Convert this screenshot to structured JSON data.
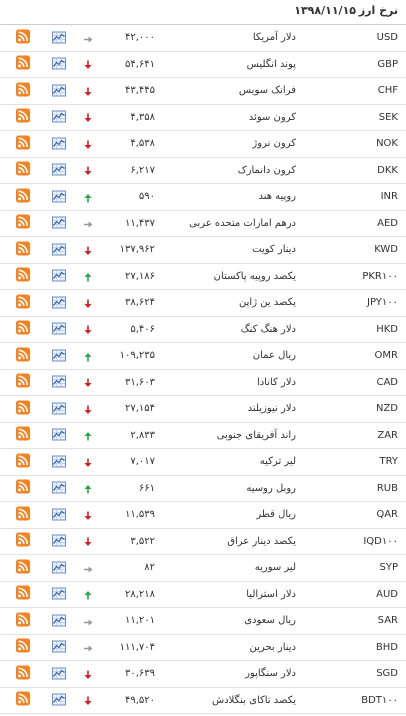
{
  "header": {
    "title": "نرخ ارز",
    "date": "۱۳۹۸/۱۱/۱۵"
  },
  "table": {
    "rows": [
      {
        "code": "USD",
        "name": "دلار آمریکا",
        "value": "۴۲,۰۰۰",
        "trend": "same"
      },
      {
        "code": "GBP",
        "name": "پوند انگلیس",
        "value": "۵۴,۶۴۱",
        "trend": "down"
      },
      {
        "code": "CHF",
        "name": "فرانک سویس",
        "value": "۴۳,۴۴۵",
        "trend": "down"
      },
      {
        "code": "SEK",
        "name": "کرون سوئد",
        "value": "۴,۳۵۸",
        "trend": "down"
      },
      {
        "code": "NOK",
        "name": "کرون نروژ",
        "value": "۴,۵۳۸",
        "trend": "down"
      },
      {
        "code": "DKK",
        "name": "کرون دانمارک",
        "value": "۶,۲۱۷",
        "trend": "down"
      },
      {
        "code": "INR",
        "name": "روپیه هند",
        "value": "۵۹۰",
        "trend": "up"
      },
      {
        "code": "AED",
        "name": "درهم امارات متحده عربی",
        "value": "۱۱,۴۳۷",
        "trend": "same"
      },
      {
        "code": "KWD",
        "name": "دینار کویت",
        "value": "۱۳۷,۹۶۲",
        "trend": "down"
      },
      {
        "code": "PKR۱۰۰",
        "name": "یکصد روپیه پاکستان",
        "value": "۲۷,۱۸۶",
        "trend": "up"
      },
      {
        "code": "JPY۱۰۰",
        "name": "یکصد ین ژاپن",
        "value": "۳۸,۶۲۴",
        "trend": "down"
      },
      {
        "code": "HKD",
        "name": "دلار هنگ کنگ",
        "value": "۵,۴۰۶",
        "trend": "down"
      },
      {
        "code": "OMR",
        "name": "ریال عمان",
        "value": "۱۰۹,۲۳۵",
        "trend": "up"
      },
      {
        "code": "CAD",
        "name": "دلار کانادا",
        "value": "۳۱,۶۰۳",
        "trend": "down"
      },
      {
        "code": "NZD",
        "name": "دلار نیوزیلند",
        "value": "۲۷,۱۵۴",
        "trend": "down"
      },
      {
        "code": "ZAR",
        "name": "راند آفریقای جنوبی",
        "value": "۲,۸۳۳",
        "trend": "up"
      },
      {
        "code": "TRY",
        "name": "لیر ترکیه",
        "value": "۷,۰۱۷",
        "trend": "down"
      },
      {
        "code": "RUB",
        "name": "روبل روسیه",
        "value": "۶۶۱",
        "trend": "up"
      },
      {
        "code": "QAR",
        "name": "ریال قطر",
        "value": "۱۱,۵۳۹",
        "trend": "down"
      },
      {
        "code": "IQD۱۰۰",
        "name": "یکصد دینار عراق",
        "value": "۳,۵۲۲",
        "trend": "down"
      },
      {
        "code": "SYP",
        "name": "لیر سوریه",
        "value": "۸۲",
        "trend": "same"
      },
      {
        "code": "AUD",
        "name": "دلار استرالیا",
        "value": "۲۸,۲۱۸",
        "trend": "up"
      },
      {
        "code": "SAR",
        "name": "ریال سعودی",
        "value": "۱۱,۲۰۱",
        "trend": "same"
      },
      {
        "code": "BHD",
        "name": "دینار بحرین",
        "value": "۱۱۱,۷۰۴",
        "trend": "same"
      },
      {
        "code": "SGD",
        "name": "دلار سنگاپور",
        "value": "۳۰,۶۳۹",
        "trend": "down"
      },
      {
        "code": "BDT۱۰۰",
        "name": "یکصد تاکای بنگلادش",
        "value": "۴۹,۵۲۰",
        "trend": "down"
      }
    ]
  }
}
